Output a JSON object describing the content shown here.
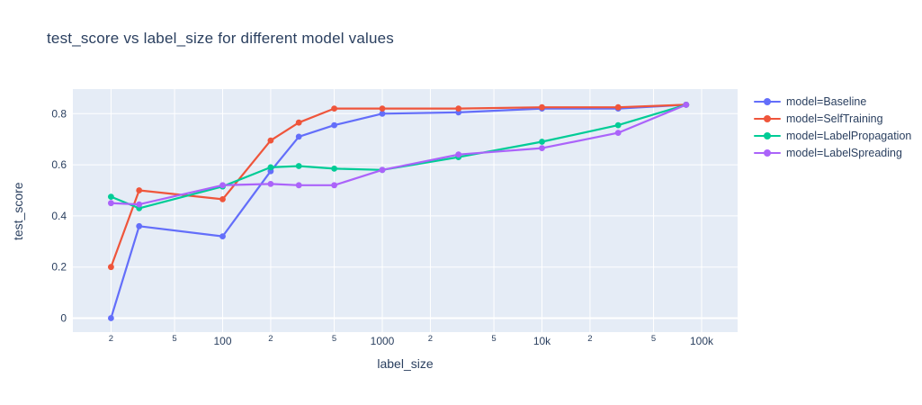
{
  "chart_data": {
    "type": "line",
    "title": "test_score vs label_size for different model values",
    "xlabel": "label_size",
    "ylabel": "test_score",
    "x_scale": "log",
    "grid": true,
    "legend_position": "right",
    "plot_bg_color": "#E5ECF6",
    "grid_color": "#FFFFFF",
    "text_color": "#2a3f5f",
    "x": [
      20,
      30,
      100,
      200,
      300,
      500,
      1000,
      3000,
      10000,
      30000,
      80000
    ],
    "series": [
      {
        "name": "model=Baseline",
        "color": "#636EFA",
        "values": [
          0.0,
          0.36,
          0.32,
          0.575,
          0.71,
          0.755,
          0.8,
          0.805,
          0.82,
          0.82,
          0.835
        ]
      },
      {
        "name": "model=SelfTraining",
        "color": "#EF553B",
        "values": [
          0.2,
          0.5,
          0.465,
          0.695,
          0.765,
          0.82,
          0.82,
          0.82,
          0.825,
          0.825,
          0.835
        ]
      },
      {
        "name": "model=LabelPropagation",
        "color": "#00CC96",
        "values": [
          0.475,
          0.43,
          0.515,
          0.59,
          0.595,
          0.585,
          0.58,
          0.63,
          0.69,
          0.755,
          0.835
        ]
      },
      {
        "name": "model=LabelSpreading",
        "color": "#AB63FA",
        "values": [
          0.45,
          0.445,
          0.52,
          0.525,
          0.52,
          0.52,
          0.58,
          0.64,
          0.665,
          0.725,
          0.835
        ]
      }
    ],
    "x_ticks": [
      {
        "label": "2",
        "value": 20,
        "minor": true
      },
      {
        "label": "5",
        "value": 50,
        "minor": true
      },
      {
        "label": "100",
        "value": 100,
        "minor": false
      },
      {
        "label": "2",
        "value": 200,
        "minor": true
      },
      {
        "label": "5",
        "value": 500,
        "minor": true
      },
      {
        "label": "1000",
        "value": 1000,
        "minor": false
      },
      {
        "label": "2",
        "value": 2000,
        "minor": true
      },
      {
        "label": "5",
        "value": 5000,
        "minor": true
      },
      {
        "label": "10k",
        "value": 10000,
        "minor": false
      },
      {
        "label": "2",
        "value": 20000,
        "minor": true
      },
      {
        "label": "5",
        "value": 50000,
        "minor": true
      },
      {
        "label": "100k",
        "value": 100000,
        "minor": false
      }
    ],
    "y_ticks": [
      {
        "label": "0",
        "value": 0.0
      },
      {
        "label": "0.2",
        "value": 0.2
      },
      {
        "label": "0.4",
        "value": 0.4
      },
      {
        "label": "0.6",
        "value": 0.6
      },
      {
        "label": "0.8",
        "value": 0.8
      }
    ],
    "ylim": [
      -0.055,
      0.9
    ],
    "xlim_log": [
      11.5,
      170000
    ]
  }
}
